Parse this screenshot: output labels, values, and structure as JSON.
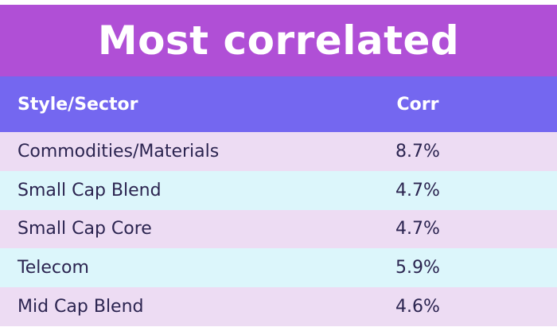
{
  "title": "Most correlated",
  "columns": [
    "Style/Sector",
    "Corr"
  ],
  "colors": {
    "title_bg": "#b04fd6",
    "header_bg": "#7467f0",
    "row_odd_bg": "#eddcf3",
    "row_even_bg": "#dcf6fb",
    "text": "#2b2450"
  },
  "rows": [
    {
      "name": "Commodities/Materials",
      "corr": "8.7%"
    },
    {
      "name": "Small Cap Blend",
      "corr": "4.7%"
    },
    {
      "name": "Small Cap Core",
      "corr": "4.7%"
    },
    {
      "name": "Telecom",
      "corr": "5.9%"
    },
    {
      "name": "Mid Cap Blend",
      "corr": "4.6%"
    }
  ],
  "chart_data": {
    "type": "table",
    "title": "Most correlated",
    "columns": [
      "Style/Sector",
      "Corr"
    ],
    "rows": [
      [
        "Commodities/Materials",
        "8.7%"
      ],
      [
        "Small Cap Blend",
        "4.7%"
      ],
      [
        "Small Cap Core",
        "4.7%"
      ],
      [
        "Telecom",
        "5.9%"
      ],
      [
        "Mid Cap Blend",
        "4.6%"
      ]
    ]
  }
}
